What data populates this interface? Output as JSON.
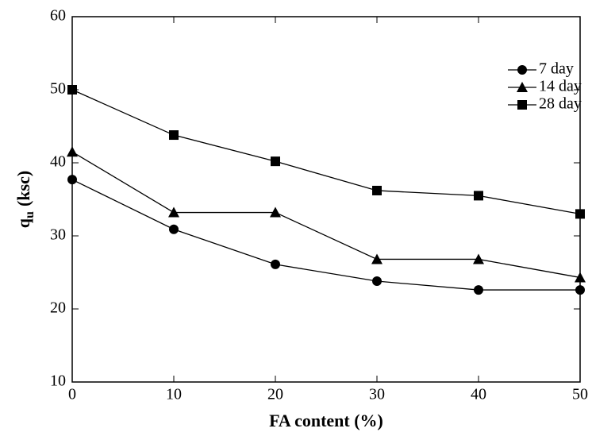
{
  "chart_data": {
    "type": "line",
    "xlabel": "FA content (%)",
    "ylabel": [
      "q",
      "u",
      "(ksc)"
    ],
    "x": [
      0,
      10,
      20,
      30,
      40,
      50
    ],
    "series": [
      {
        "name": "7 day",
        "color": "#000000",
        "marker": "circle",
        "values": [
          37.7,
          30.9,
          26.1,
          23.8,
          22.6,
          22.6
        ]
      },
      {
        "name": "14 day",
        "color": "#000000",
        "marker": "triangle",
        "values": [
          41.5,
          33.2,
          33.2,
          26.8,
          26.8,
          24.3
        ]
      },
      {
        "name": "28 day",
        "color": "#000000",
        "marker": "square",
        "values": [
          50,
          43.8,
          40.2,
          36.2,
          35.5,
          33.0
        ]
      }
    ],
    "xlim": [
      0,
      50
    ],
    "xticks": [
      0,
      10,
      20,
      30,
      40,
      50
    ],
    "ylim": [
      10,
      60
    ],
    "yticks": [
      10,
      20,
      30,
      40,
      50,
      60
    ],
    "legend": "upper right"
  }
}
